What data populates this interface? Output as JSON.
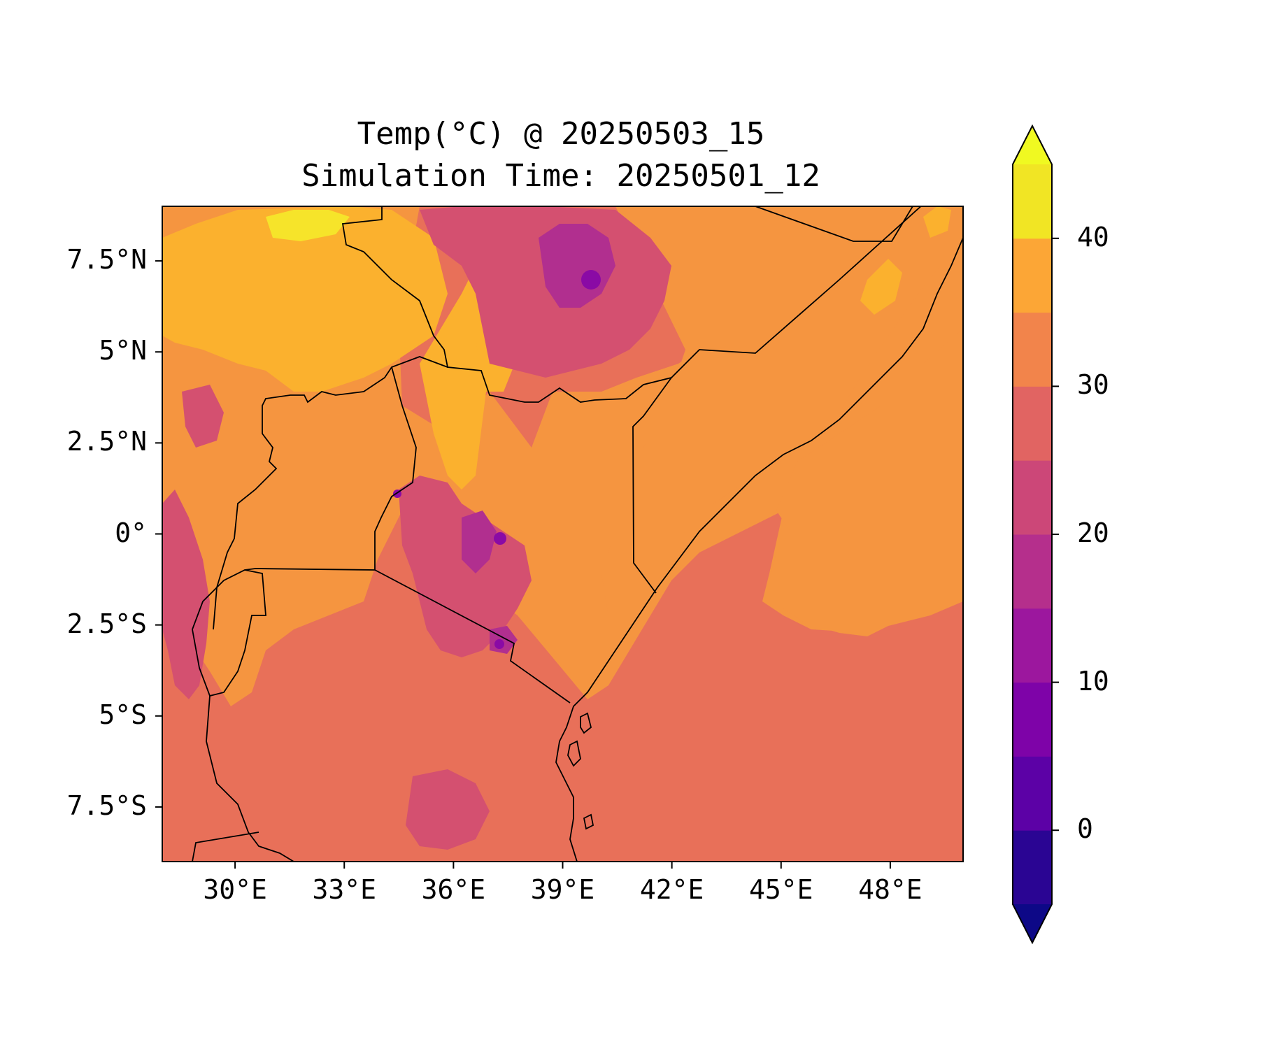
{
  "title": {
    "line1": "Temp(°C) @ 20250503_15",
    "line2": "Simulation Time: 20250501_12"
  },
  "axes": {
    "x_ticks": [
      {
        "value": 30,
        "label": "30°E"
      },
      {
        "value": 33,
        "label": "33°E"
      },
      {
        "value": 36,
        "label": "36°E"
      },
      {
        "value": 39,
        "label": "39°E"
      },
      {
        "value": 42,
        "label": "42°E"
      },
      {
        "value": 45,
        "label": "45°E"
      },
      {
        "value": 48,
        "label": "48°E"
      }
    ],
    "y_ticks": [
      {
        "value": 7.5,
        "label": "7.5°N"
      },
      {
        "value": 5,
        "label": "5°N"
      },
      {
        "value": 2.5,
        "label": "2.5°N"
      },
      {
        "value": 0,
        "label": "0°"
      },
      {
        "value": -2.5,
        "label": "2.5°S"
      },
      {
        "value": -5,
        "label": "5°S"
      },
      {
        "value": -7.5,
        "label": "7.5°S"
      }
    ],
    "lon_range": [
      28,
      50
    ],
    "lat_range": [
      -9,
      9
    ]
  },
  "colorbar": {
    "min": -5,
    "max": 45,
    "step": 5,
    "extend": "both",
    "ticks": [
      {
        "value": 0,
        "label": "0"
      },
      {
        "value": 10,
        "label": "10"
      },
      {
        "value": 20,
        "label": "20"
      },
      {
        "value": 30,
        "label": "30"
      },
      {
        "value": 40,
        "label": "40"
      }
    ],
    "colors": [
      "#0d0887",
      "#2a0593",
      "#5c01a6",
      "#7e03a8",
      "#9c179e",
      "#b52f8c",
      "#cc4778",
      "#e16462",
      "#f2844b",
      "#fca636",
      "#f1e524"
    ],
    "under_color": "#0d0887",
    "over_color": "#f0f921"
  },
  "map": {
    "ocean_color": "#e87059",
    "land_color": "#f59540",
    "hot_color": "#fbb12e",
    "very_hot_color": "#f6e42a",
    "cool_color": "#d45070",
    "cold_color": "#b12f8f",
    "coldest_color": "#8a0aa5",
    "border_color": "#000000"
  }
}
